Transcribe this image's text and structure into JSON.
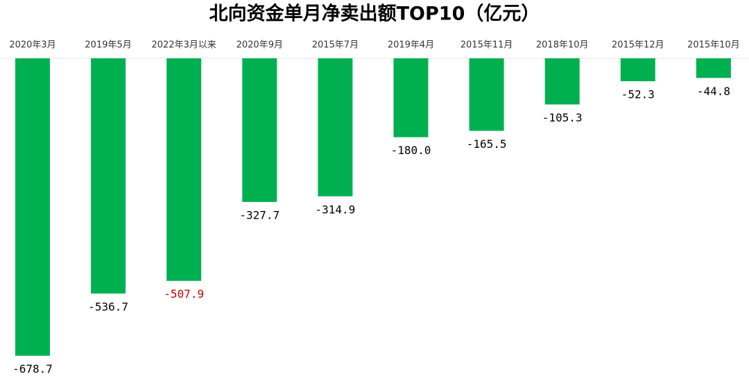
{
  "chart_data": {
    "type": "bar",
    "title": "北向资金单月净卖出额TOP10（亿元）",
    "categories": [
      "2020年3月",
      "2019年5月",
      "2022年3月以来",
      "2020年9月",
      "2015年7月",
      "2019年4月",
      "2015年11月",
      "2018年10月",
      "2015年12月",
      "2015年10月"
    ],
    "values": [
      -678.7,
      -536.7,
      -507.9,
      -327.7,
      -314.9,
      -180.0,
      -165.5,
      -105.3,
      -52.3,
      -44.8
    ],
    "value_labels": [
      "-678.7",
      "-536.7",
      "-507.9",
      "-327.7",
      "-314.9",
      "-180.0",
      "-165.5",
      "-105.3",
      "-52.3",
      "-44.8"
    ],
    "value_label_colors": [
      "#000000",
      "#000000",
      "#c00000",
      "#000000",
      "#000000",
      "#000000",
      "#000000",
      "#000000",
      "#000000",
      "#000000"
    ],
    "color": "#00b050",
    "ylim": [
      -700,
      0
    ]
  }
}
